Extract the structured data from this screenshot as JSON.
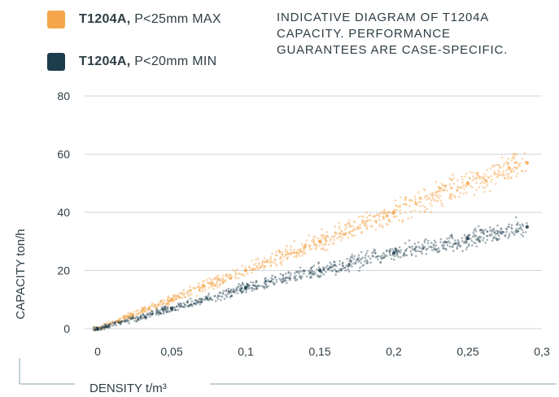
{
  "legend": {
    "items": [
      {
        "bold": "T1204A,",
        "rest": " P<25mm MAX",
        "color": "#f5a54a"
      },
      {
        "bold": "T1204A,",
        "rest": " P<20mm MIN",
        "color": "#1e3d4c"
      }
    ]
  },
  "note": {
    "lines": [
      "INDICATIVE DIAGRAM OF T1204A",
      "CAPACITY. PERFORMANCE",
      "GUARANTEES ARE CASE-SPECIFIC."
    ]
  },
  "chart_data": {
    "type": "scatter",
    "xlabel": "DENSITY t/m³",
    "ylabel": "CAPACITY ton/h",
    "xlim": [
      0,
      0.3
    ],
    "ylim": [
      0,
      80
    ],
    "x_ticks": [
      "0",
      "0,05",
      "0,1",
      "0,15",
      "0,2",
      "0,25",
      "0,3"
    ],
    "y_ticks": [
      "0",
      "20",
      "40",
      "60",
      "80"
    ],
    "grid": "horizontal",
    "series": [
      {
        "name": "T1204A, P<25mm MAX",
        "color": "#f5a54a",
        "x": [
          0,
          0.05,
          0.1,
          0.15,
          0.2,
          0.25,
          0.29
        ],
        "y": [
          0,
          10,
          20,
          30,
          40,
          50,
          57
        ]
      },
      {
        "name": "T1204A, P<20mm MIN",
        "color": "#1e3d4c",
        "x": [
          0,
          0.05,
          0.1,
          0.15,
          0.2,
          0.25,
          0.29
        ],
        "y": [
          0,
          7,
          14,
          20,
          26,
          31,
          35
        ]
      }
    ]
  }
}
